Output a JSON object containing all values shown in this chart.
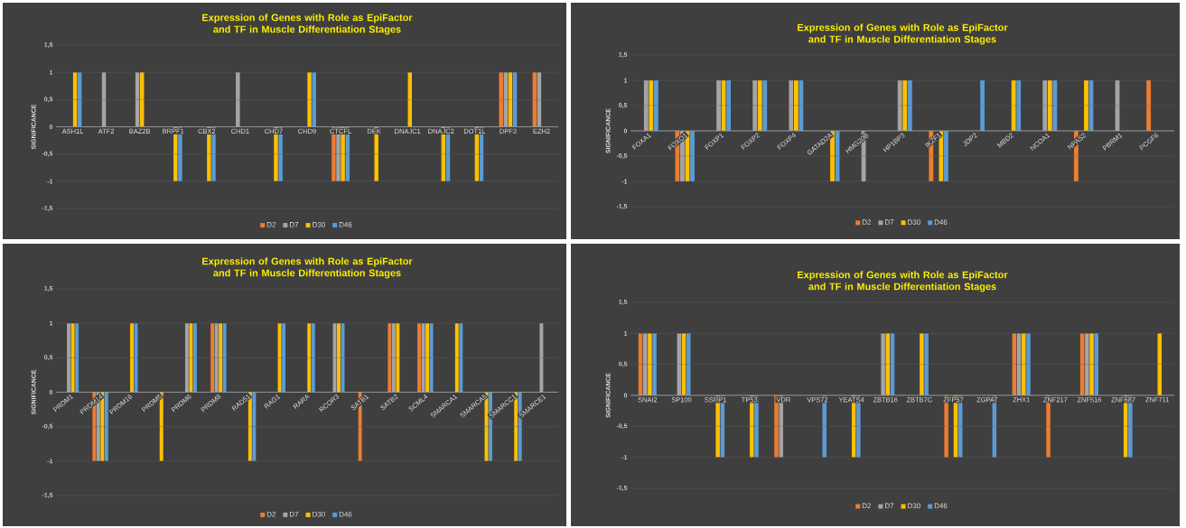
{
  "chart_data": [
    {
      "type": "bar",
      "title": "Expression of Genes with Role as EpiFactor and TF in Muscle Differentiation Stages",
      "ylabel": "SIGNIFICANCE",
      "grid": "y",
      "legend": "bottom",
      "ylim": [
        -1.5,
        1.5
      ],
      "yticks": [
        {
          "value": -1.5,
          "label": "-1,5"
        },
        -1,
        {
          "value": -0.5,
          "label": "-0,5"
        },
        0,
        {
          "value": 0.5,
          "label": "0,5"
        },
        1,
        {
          "value": 1.5,
          "label": "1,5"
        }
      ],
      "categories": [
        "ASH1L",
        "ATF2",
        "BAZ2B",
        "BRPF1",
        "CBX2",
        "CHD1",
        "CHD7",
        "CHD9",
        "CTCFL",
        "DEK",
        "DNAJC1",
        "DNAJC2",
        "DOT1L",
        "DPF3",
        "EZH2"
      ],
      "series": [
        {
          "name": "D2",
          "color": "#ed7d31",
          "values": [
            null,
            null,
            null,
            null,
            null,
            null,
            null,
            null,
            -1,
            null,
            null,
            null,
            null,
            1,
            1
          ]
        },
        {
          "name": "D7",
          "color": "#a5a5a5",
          "values": [
            null,
            1,
            1,
            null,
            null,
            1,
            null,
            null,
            -1,
            null,
            null,
            null,
            null,
            1,
            1
          ]
        },
        {
          "name": "D30",
          "color": "#ffc000",
          "values": [
            1,
            null,
            1,
            -1,
            -1,
            null,
            -1,
            1,
            -1,
            -1,
            1,
            -1,
            -1,
            1,
            null
          ]
        },
        {
          "name": "D46",
          "color": "#5b9bd5",
          "values": [
            1,
            null,
            null,
            -1,
            -1,
            null,
            -1,
            1,
            -1,
            null,
            null,
            -1,
            -1,
            1,
            null
          ]
        }
      ]
    },
    {
      "type": "bar",
      "title": "Expression of Genes with Role as EpiFactor and TF in Muscle Differentiation Stages",
      "ylabel": "SIGNIFICANCE",
      "grid": "y",
      "legend": "bottom",
      "ylim": [
        -1.5,
        1.5
      ],
      "yticks": [
        {
          "value": -1.5,
          "label": "-1,5"
        },
        -1,
        {
          "value": -0.5,
          "label": "-0,5"
        },
        0,
        {
          "value": 0.5,
          "label": "0,5"
        },
        1,
        {
          "value": 1.5,
          "label": "1,5"
        }
      ],
      "categories": [
        "FOXA1",
        "FOXO1",
        "FOXP1",
        "FOXP2",
        "FOXP4",
        "GATAD2A",
        "HMG20B",
        "HP1BP3",
        "IKZF1",
        "JDP2",
        "MBD2",
        "NCOA1",
        "NPAS2",
        "PBRM1",
        "PCGF6"
      ],
      "series": [
        {
          "name": "D2",
          "color": "#ed7d31",
          "values": [
            null,
            -1,
            null,
            null,
            null,
            null,
            null,
            null,
            -1,
            null,
            null,
            null,
            -1,
            null,
            1
          ]
        },
        {
          "name": "D7",
          "color": "#a5a5a5",
          "values": [
            1,
            -1,
            1,
            1,
            1,
            null,
            -1,
            1,
            null,
            null,
            null,
            1,
            null,
            1,
            null
          ]
        },
        {
          "name": "D30",
          "color": "#ffc000",
          "values": [
            1,
            -1,
            1,
            1,
            1,
            -1,
            null,
            1,
            -1,
            null,
            1,
            1,
            1,
            null,
            null
          ]
        },
        {
          "name": "D46",
          "color": "#5b9bd5",
          "values": [
            1,
            -1,
            1,
            1,
            1,
            -1,
            null,
            1,
            -1,
            1,
            1,
            1,
            1,
            null,
            null
          ]
        }
      ]
    },
    {
      "type": "bar",
      "title": "Expression of Genes with Role as EpiFactor and TF in Muscle Differentiation Stages",
      "ylabel": "SIGNIFICANCE",
      "grid": "y",
      "legend": "bottom",
      "ylim": [
        -1.5,
        1.5
      ],
      "yticks": [
        {
          "value": -1.5,
          "label": "-1,5"
        },
        -1,
        {
          "value": -0.5,
          "label": "-0,5"
        },
        0,
        {
          "value": 0.5,
          "label": "0,5"
        },
        1,
        {
          "value": 1.5,
          "label": "1,5"
        }
      ],
      "categories": [
        "PRDM1",
        "PRDM14",
        "PRDM16",
        "PRDM5",
        "PRDM6",
        "PRDM8",
        "RAD51",
        "RAG1",
        "RARA",
        "RCOR3",
        "SATB1",
        "SATB2",
        "SCML4",
        "SMARCA1",
        "SMARCA5",
        "SMARCC1",
        "SMARCE1"
      ],
      "series": [
        {
          "name": "D2",
          "color": "#ed7d31",
          "values": [
            null,
            -1,
            null,
            null,
            null,
            1,
            null,
            null,
            null,
            null,
            -1,
            1,
            1,
            null,
            null,
            null,
            null
          ]
        },
        {
          "name": "D7",
          "color": "#a5a5a5",
          "values": [
            1,
            -1,
            null,
            null,
            1,
            1,
            null,
            null,
            null,
            1,
            null,
            1,
            1,
            null,
            null,
            null,
            1
          ]
        },
        {
          "name": "D30",
          "color": "#ffc000",
          "values": [
            1,
            -1,
            1,
            -1,
            1,
            1,
            -1,
            1,
            1,
            1,
            null,
            1,
            1,
            1,
            -1,
            -1,
            null
          ]
        },
        {
          "name": "D46",
          "color": "#5b9bd5",
          "values": [
            1,
            -1,
            1,
            null,
            1,
            1,
            -1,
            1,
            1,
            1,
            null,
            null,
            1,
            1,
            -1,
            -1,
            null
          ]
        }
      ]
    },
    {
      "type": "bar",
      "title": "Expression of Genes with Role as EpiFactor and TF in Muscle Differentiation Stages",
      "ylabel": "SIGNIFICANCE",
      "grid": "y",
      "legend": "bottom",
      "ylim": [
        -1.5,
        1.5
      ],
      "yticks": [
        {
          "value": -1.5,
          "label": "-1,5"
        },
        -1,
        {
          "value": -0.5,
          "label": "-0,5"
        },
        0,
        {
          "value": 0.5,
          "label": "0,5"
        },
        1,
        {
          "value": 1.5,
          "label": "1,5"
        }
      ],
      "categories": [
        "SNAI2",
        "SP100",
        "SSRP1",
        "TP53",
        "VDR",
        "VPS72",
        "YEATS4",
        "ZBTB16",
        "ZBTB7C",
        "ZFP57",
        "ZGPAT",
        "ZHX1",
        "ZNF217",
        "ZNF516",
        "ZNF687",
        "ZNF711"
      ],
      "series": [
        {
          "name": "D2",
          "color": "#ed7d31",
          "values": [
            1,
            null,
            null,
            null,
            -1,
            null,
            null,
            null,
            null,
            -1,
            null,
            1,
            -1,
            1,
            null,
            null
          ]
        },
        {
          "name": "D7",
          "color": "#a5a5a5",
          "values": [
            1,
            1,
            null,
            null,
            -1,
            null,
            null,
            1,
            null,
            null,
            null,
            1,
            null,
            1,
            null,
            null
          ]
        },
        {
          "name": "D30",
          "color": "#ffc000",
          "values": [
            1,
            1,
            -1,
            -1,
            null,
            null,
            -1,
            1,
            1,
            -1,
            null,
            1,
            null,
            1,
            -1,
            1
          ]
        },
        {
          "name": "D46",
          "color": "#5b9bd5",
          "values": [
            1,
            1,
            -1,
            -1,
            null,
            -1,
            -1,
            1,
            1,
            -1,
            -1,
            1,
            null,
            1,
            -1,
            null
          ]
        }
      ]
    }
  ]
}
